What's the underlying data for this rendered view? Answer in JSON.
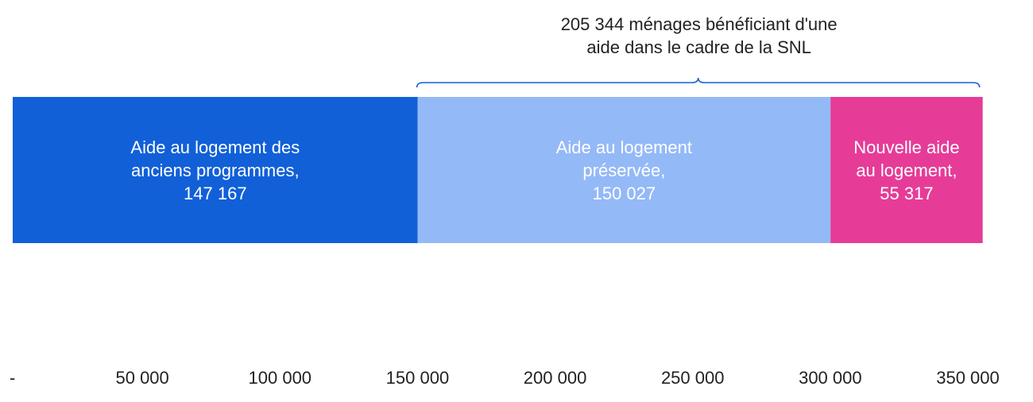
{
  "chart_data": {
    "type": "bar",
    "orientation": "horizontal",
    "stacked": true,
    "xlim": [
      0,
      350000
    ],
    "tick_labels": [
      "-",
      "50 000",
      "100 000",
      "150 000",
      "200 000",
      "250 000",
      "300 000",
      "350 000"
    ],
    "tick_values": [
      0,
      50000,
      100000,
      150000,
      200000,
      250000,
      300000,
      350000
    ],
    "grid": false,
    "legend": "none",
    "series": [
      {
        "name": "Aide au logement des anciens programmes",
        "value": 147167,
        "label_lines": [
          "Aide au logement des",
          "anciens programmes,",
          "147 167"
        ],
        "color": "#1160D8",
        "text_color": "#FFFFFF"
      },
      {
        "name": "Aide au logement préservée",
        "value": 150027,
        "label_lines": [
          "Aide au logement",
          "préservée,",
          "150 027"
        ],
        "color": "#94B9F7",
        "text_color": "#333333"
      },
      {
        "name": "Nouvelle aide au logement",
        "value": 55317,
        "label_lines": [
          "Nouvelle aide",
          "au logement,",
          "55 317"
        ],
        "color": "#E63C98",
        "text_color": "#FFFFFF"
      }
    ],
    "annotation": {
      "text_lines": [
        "205 344 ménages bénéficiant d'une",
        "aide dans le cadre de la SNL"
      ],
      "spans_series": [
        1,
        2
      ],
      "value": 205344,
      "color": "#1160D8"
    }
  }
}
